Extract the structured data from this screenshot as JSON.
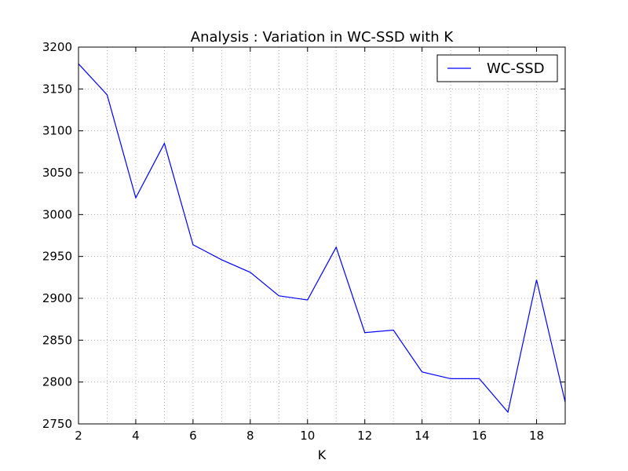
{
  "chart_data": {
    "type": "line",
    "title": "Analysis : Variation in WC-SSD with K",
    "xlabel": "K",
    "ylabel": "",
    "xlim": [
      2,
      19
    ],
    "ylim": [
      2750,
      3200
    ],
    "xticks": [
      2,
      4,
      6,
      8,
      10,
      12,
      14,
      16,
      18
    ],
    "yticks": [
      2750,
      2800,
      2850,
      2900,
      2950,
      3000,
      3050,
      3100,
      3150,
      3200
    ],
    "grid": true,
    "legend_position": "top-right",
    "series": [
      {
        "name": "WC-SSD",
        "color": "#0000ff",
        "x": [
          2,
          3,
          4,
          5,
          6,
          7,
          8,
          9,
          10,
          11,
          12,
          13,
          14,
          15,
          16,
          17,
          18,
          19
        ],
        "y": [
          3180,
          3143,
          3020,
          3085,
          2964,
          2946,
          2931,
          2903,
          2898,
          2961,
          2859,
          2862,
          2812,
          2804,
          2804,
          2764,
          2922,
          2776
        ]
      }
    ]
  }
}
